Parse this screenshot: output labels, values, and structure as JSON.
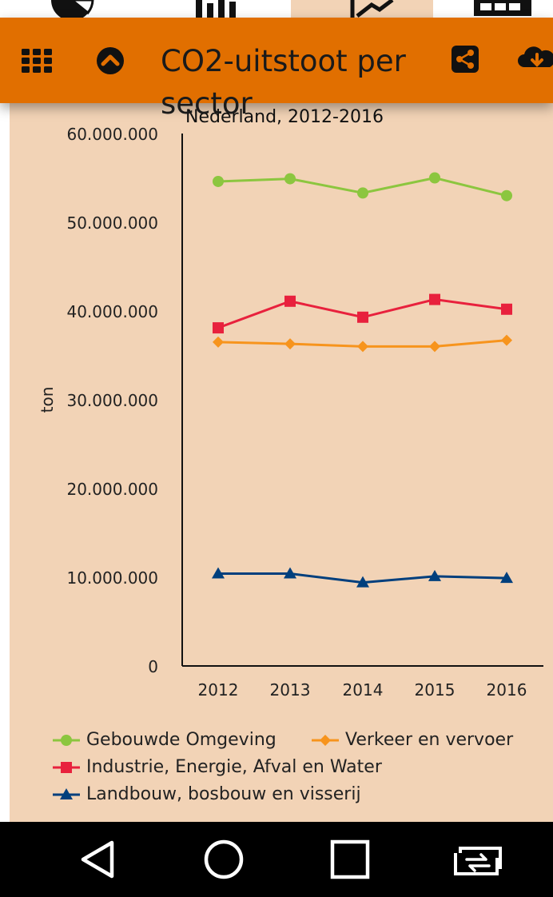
{
  "header": {
    "title": "CO2-uitstoot per sector",
    "menu_icon": "grid-icon",
    "collapse_icon": "chevron-up-circle-icon",
    "share_icon": "share-icon",
    "download_icon": "cloud-download-icon",
    "color": "#e16f00"
  },
  "top_strip": {
    "icons": [
      "pie-chart-icon",
      "bar-chart-icon",
      "line-chart-icon",
      "table-icon"
    ],
    "active_index": 2
  },
  "chart_data": {
    "type": "line",
    "subtitle": "Nederland, 2012-2016",
    "ylabel": "ton",
    "xlabel": "",
    "ylim": [
      0,
      60000000
    ],
    "yticks": [
      "0",
      "10.000.000",
      "20.000.000",
      "30.000.000",
      "40.000.000",
      "50.000.000",
      "60.000.000"
    ],
    "categories": [
      "2012",
      "2013",
      "2014",
      "2015",
      "2016"
    ],
    "grid": false,
    "legend_position": "bottom",
    "series": [
      {
        "name": "Gebouwde Omgeving",
        "color": "#8cc63f",
        "marker": "circle",
        "values": [
          54600000,
          54900000,
          53300000,
          55000000,
          53000000
        ]
      },
      {
        "name": "Verkeer en vervoer",
        "color": "#f7941d",
        "marker": "diamond",
        "values": [
          36500000,
          36300000,
          36000000,
          36000000,
          36700000
        ]
      },
      {
        "name": "Industrie, Energie, Afval en Water",
        "color": "#e8213d",
        "marker": "square",
        "values": [
          38100000,
          41100000,
          39300000,
          41300000,
          40200000
        ]
      },
      {
        "name": "Landbouw, bosbouw en visserij",
        "color": "#003f7d",
        "marker": "triangle",
        "values": [
          10400000,
          10400000,
          9400000,
          10100000,
          9900000
        ]
      }
    ]
  },
  "navbar": {
    "icons": [
      "back-icon",
      "home-icon",
      "recents-icon",
      "switch-app-icon"
    ]
  }
}
